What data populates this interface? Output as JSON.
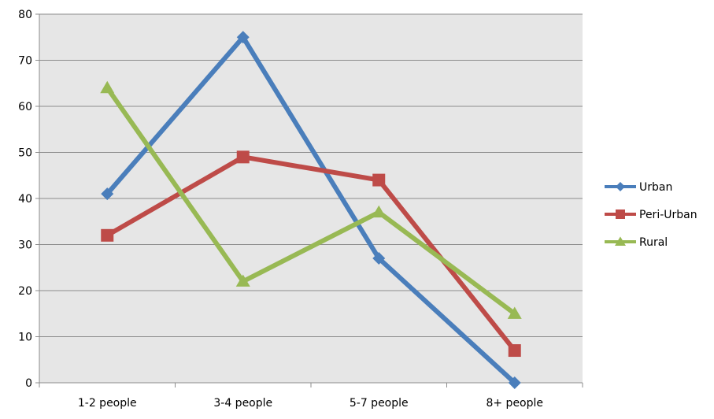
{
  "chart_data": {
    "type": "line",
    "categories": [
      "1-2 people",
      "3-4 people",
      "5-7 people",
      "8+ people"
    ],
    "series": [
      {
        "name": "Urban",
        "values": [
          41,
          75,
          27,
          0
        ],
        "color": "#4a7ebb",
        "marker": "diamond"
      },
      {
        "name": "Peri-Urban",
        "values": [
          32,
          49,
          44,
          7
        ],
        "color": "#be4b48",
        "marker": "square"
      },
      {
        "name": "Rural",
        "values": [
          64,
          22,
          37,
          15
        ],
        "color": "#98b954",
        "marker": "triangle"
      }
    ],
    "ylim": [
      0,
      80
    ],
    "yticks": [
      0,
      10,
      20,
      30,
      40,
      50,
      60,
      70,
      80
    ],
    "grid": true,
    "legend": "right",
    "plot_background": "#e6e6e6",
    "gridline_color": "#8c8c8c"
  }
}
